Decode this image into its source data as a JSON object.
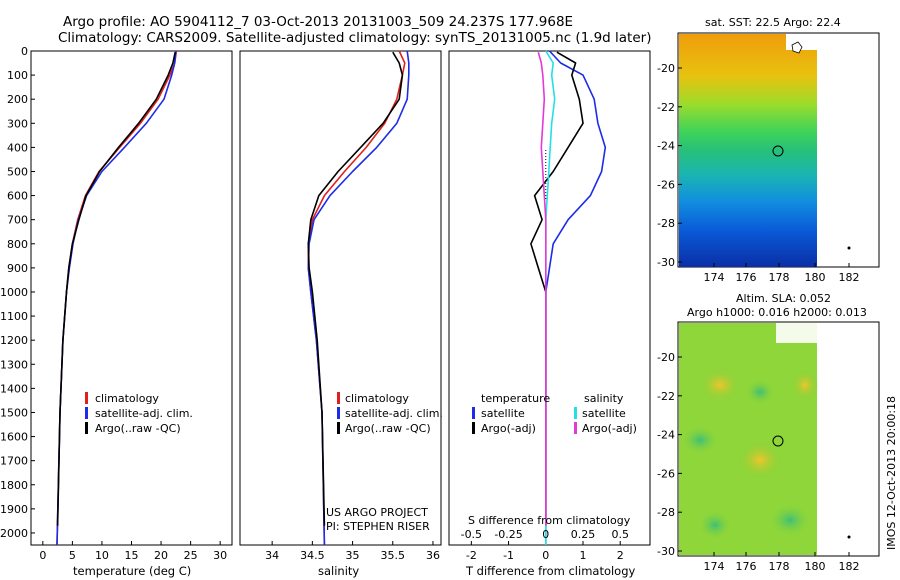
{
  "title_line1": "Argo profile: AO 5904112_7 03-Oct-2013 20131003_509 24.237S 177.968E",
  "title_line2": "Climatology: CARS2009. Satellite-adjusted climatology: synTS_20131005.nc (1.9d later)",
  "side_label": "IMOS 12-Oct-2013 20:00:18",
  "colors": {
    "climatology": "#e0201c",
    "satellite": "#1c2ce8",
    "argo": "#000000",
    "sal_satellite": "#23e0e6",
    "sal_argo": "#e23ad6"
  },
  "panels": {
    "temperature": {
      "xlabel": "temperature (deg C)",
      "xlim": [
        -2,
        32
      ],
      "xticks": [
        0,
        5,
        10,
        15,
        20,
        25,
        30
      ],
      "legend": [
        "climatology",
        "satellite-adj. clim.",
        "Argo(..raw -QC)"
      ]
    },
    "salinity": {
      "xlabel": "salinity",
      "xlim": [
        33.6,
        36.1
      ],
      "xticks": [
        34,
        34.5,
        35,
        35.5,
        36
      ],
      "legend": [
        "climatology",
        "satellite-adj. clim.",
        "Argo(..raw -QC)"
      ],
      "credit1": "US ARGO PROJECT",
      "credit2": "PI: STEPHEN RISER"
    },
    "difference": {
      "xlabel": "T difference from climatology",
      "xlim": [
        -2.6,
        2.8
      ],
      "xticks": [
        -2,
        -1,
        0,
        1,
        2
      ],
      "xlabel_top": "S difference from climatology",
      "sticks": [
        "-0.5",
        "-0.25",
        "0",
        "0.25",
        "0.5"
      ],
      "s_tick_positions_t_units": [
        -2,
        -1,
        0,
        1,
        2
      ],
      "legend_t_head": "temperature",
      "legend_s_head": "salinity",
      "legend_t": [
        "satellite",
        "Argo(-adj)"
      ],
      "legend_s": [
        "satellite",
        "Argo(-adj)"
      ]
    },
    "yaxis": {
      "ylim": [
        0,
        2050
      ],
      "yticks": [
        0,
        100,
        200,
        300,
        400,
        500,
        600,
        700,
        800,
        900,
        1000,
        1100,
        1200,
        1300,
        1400,
        1500,
        1600,
        1700,
        1800,
        1900,
        2000
      ]
    }
  },
  "maps": {
    "sst": {
      "title": "sat. SST: 22.5 Argo: 22.4",
      "xticks": [
        "174",
        "176",
        "178",
        "180",
        "182"
      ],
      "yticks": [
        "-20",
        "-22",
        "-24",
        "-26",
        "-28",
        "-30"
      ]
    },
    "sla": {
      "title1": "Altim. SLA: 0.052",
      "title2": "Argo h1000: 0.016 h2000: 0.013",
      "xticks": [
        "174",
        "176",
        "178",
        "180",
        "182"
      ],
      "yticks": [
        "-20",
        "-22",
        "-24",
        "-26",
        "-28",
        "-30"
      ]
    }
  },
  "chart_data": [
    {
      "type": "line",
      "ylabel": "",
      "xlabel": "temperature (deg C)",
      "ylim": [
        0,
        2050
      ],
      "xlim": [
        -2,
        32
      ],
      "series": [
        {
          "name": "climatology",
          "depth": [
            0,
            50,
            100,
            200,
            300,
            400,
            500,
            600,
            700,
            800,
            900,
            1000,
            1200,
            1500,
            2050
          ],
          "values": [
            22.6,
            22.3,
            21.5,
            19.5,
            16.5,
            13.0,
            9.5,
            7.2,
            5.9,
            5.0,
            4.4,
            4.0,
            3.4,
            2.9,
            2.4
          ]
        },
        {
          "name": "satellite-adj. clim.",
          "depth": [
            0,
            50,
            100,
            200,
            300,
            400,
            500,
            600,
            700,
            800,
            900,
            1000,
            1200,
            1500,
            2050
          ],
          "values": [
            22.5,
            22.3,
            21.8,
            20.5,
            17.5,
            13.8,
            10.0,
            7.4,
            6.0,
            5.1,
            4.5,
            4.0,
            3.4,
            2.9,
            2.4
          ]
        },
        {
          "name": "Argo(..raw -QC)",
          "depth": [
            5,
            50,
            100,
            200,
            300,
            400,
            500,
            600,
            700,
            800,
            900,
            1000,
            1200,
            1500,
            1970
          ],
          "values": [
            22.4,
            22.0,
            21.2,
            19.2,
            16.2,
            12.8,
            9.6,
            7.3,
            6.1,
            5.0,
            4.4,
            4.0,
            3.4,
            2.9,
            2.5
          ]
        }
      ]
    },
    {
      "type": "line",
      "ylabel": "",
      "xlabel": "salinity",
      "ylim": [
        0,
        2050
      ],
      "xlim": [
        33.6,
        36.1
      ],
      "series": [
        {
          "name": "climatology",
          "depth": [
            0,
            50,
            100,
            200,
            300,
            400,
            500,
            600,
            700,
            800,
            900,
            1000,
            1200,
            1500,
            2050
          ],
          "values": [
            35.58,
            35.65,
            35.62,
            35.55,
            35.4,
            35.17,
            34.9,
            34.65,
            34.5,
            34.45,
            34.45,
            34.48,
            34.55,
            34.62,
            34.65
          ]
        },
        {
          "name": "satellite-adj. clim.",
          "depth": [
            0,
            50,
            100,
            200,
            300,
            400,
            500,
            600,
            700,
            800,
            900,
            1000,
            1200,
            1500,
            2050
          ],
          "values": [
            35.68,
            35.7,
            35.7,
            35.68,
            35.55,
            35.3,
            35.0,
            34.72,
            34.52,
            34.46,
            34.45,
            34.48,
            34.55,
            34.62,
            34.65
          ]
        },
        {
          "name": "Argo(..raw -QC)",
          "depth": [
            5,
            50,
            100,
            200,
            300,
            400,
            500,
            600,
            700,
            800,
            900,
            1000,
            1200,
            1500,
            1970
          ],
          "values": [
            35.5,
            35.58,
            35.62,
            35.58,
            35.38,
            35.1,
            34.82,
            34.58,
            34.48,
            34.45,
            34.46,
            34.5,
            34.56,
            34.62,
            34.65
          ]
        }
      ]
    },
    {
      "type": "line",
      "xlabel": "T difference from climatology",
      "ylim": [
        0,
        2050
      ],
      "xlim": [
        -2.6,
        2.8
      ],
      "series": [
        {
          "name": "temperature satellite",
          "depth": [
            0,
            50,
            100,
            200,
            300,
            400,
            500,
            600,
            700,
            800,
            900,
            1000,
            1200,
            1500,
            2050
          ],
          "values": [
            0.1,
            0.4,
            1.0,
            1.3,
            1.4,
            1.6,
            1.5,
            1.2,
            0.6,
            0.2,
            0.1,
            0.0,
            0.0,
            0.0,
            0.0
          ]
        },
        {
          "name": "temperature Argo(-adj)",
          "depth": [
            5,
            50,
            100,
            200,
            300,
            400,
            500,
            600,
            700,
            800,
            900,
            1000,
            1200,
            1500,
            1970
          ],
          "values": [
            0.3,
            0.8,
            0.7,
            0.9,
            1.0,
            0.6,
            0.2,
            -0.3,
            -0.1,
            -0.4,
            -0.2,
            0.0,
            0.0,
            0.0,
            0.0
          ]
        },
        {
          "name": "salinity satellite",
          "depth": [
            0,
            50,
            100,
            200,
            300,
            400,
            500,
            600,
            700,
            800,
            900,
            1000,
            1200,
            1500,
            2050
          ],
          "values": [
            0.0,
            0.05,
            0.04,
            0.06,
            0.04,
            0.03,
            0.02,
            0.01,
            0.0,
            0.0,
            0.0,
            0.0,
            0.0,
            0.0,
            0.0
          ]
        },
        {
          "name": "salinity Argo(-adj)",
          "depth": [
            5,
            50,
            100,
            200,
            300,
            400,
            500,
            600,
            700,
            800,
            900,
            1000,
            1200,
            1500,
            1970
          ],
          "values": [
            -0.05,
            -0.03,
            -0.02,
            -0.01,
            -0.02,
            -0.03,
            -0.02,
            -0.01,
            0.0,
            0.0,
            0.0,
            0.0,
            0.0,
            0.0,
            0.0
          ]
        }
      ]
    }
  ]
}
